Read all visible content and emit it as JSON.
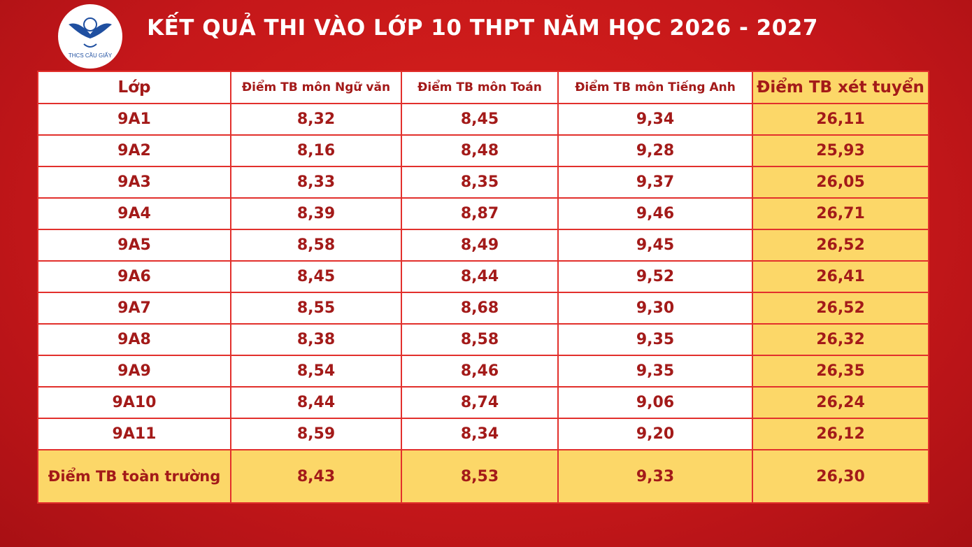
{
  "header": {
    "title": "KẾT QUẢ THI VÀO LỚP 10 THPT NĂM HỌC 2026 - 2027",
    "logo_text": "THCS CẦU GIẤY"
  },
  "table": {
    "columns": [
      "Lớp",
      "Điểm TB môn Ngữ văn",
      "Điểm TB môn Toán",
      "Điểm TB môn Tiếng Anh",
      "Điểm TB xét tuyển"
    ],
    "rows": [
      [
        "9A1",
        "8,32",
        "8,45",
        "9,34",
        "26,11"
      ],
      [
        "9A2",
        "8,16",
        "8,48",
        "9,28",
        "25,93"
      ],
      [
        "9A3",
        "8,33",
        "8,35",
        "9,37",
        "26,05"
      ],
      [
        "9A4",
        "8,39",
        "8,87",
        "9,46",
        "26,71"
      ],
      [
        "9A5",
        "8,58",
        "8,49",
        "9,45",
        "26,52"
      ],
      [
        "9A6",
        "8,45",
        "8,44",
        "9,52",
        "26,41"
      ],
      [
        "9A7",
        "8,55",
        "8,68",
        "9,30",
        "26,52"
      ],
      [
        "9A8",
        "8,38",
        "8,58",
        "9,35",
        "26,32"
      ],
      [
        "9A9",
        "8,54",
        "8,46",
        "9,35",
        "26,35"
      ],
      [
        "9A10",
        "8,44",
        "8,74",
        "9,06",
        "26,24"
      ],
      [
        "9A11",
        "8,59",
        "8,34",
        "9,20",
        "26,12"
      ]
    ],
    "footer": [
      "Điểm TB toàn trường",
      "8,43",
      "8,53",
      "9,33",
      "26,30"
    ]
  }
}
